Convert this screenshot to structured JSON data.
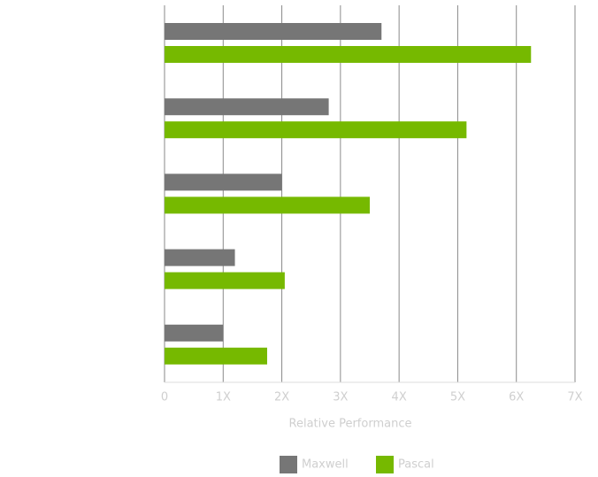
{
  "chart_data": {
    "type": "hbar",
    "categories": [
      null,
      null,
      null,
      null,
      null
    ],
    "series": [
      {
        "name": "Maxwell",
        "color": "#767676",
        "values": [
          3.7,
          2.8,
          2.0,
          1.2,
          1.0
        ]
      },
      {
        "name": "Pascal",
        "color": "#76b900",
        "values": [
          6.25,
          5.15,
          3.5,
          2.05,
          1.75
        ]
      }
    ],
    "xlabel": "Relative Performance",
    "xlim": [
      0,
      7
    ],
    "xticks": [
      0,
      {
        "value": 1,
        "label": "1X"
      },
      {
        "value": 2,
        "label": "2X"
      },
      {
        "value": 3,
        "label": "3X"
      },
      {
        "value": 4,
        "label": "4X"
      },
      {
        "value": 5,
        "label": "5X"
      },
      {
        "value": 6,
        "label": "6X"
      },
      {
        "value": 7,
        "label": "7X"
      }
    ],
    "grid": true,
    "legend": "bottom"
  }
}
